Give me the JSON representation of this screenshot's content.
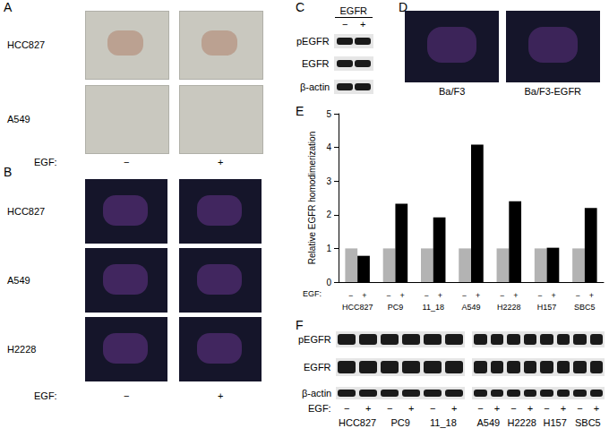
{
  "panels": {
    "A": {
      "label": "A",
      "rows": [
        "HCC827",
        "A549"
      ],
      "condition": "EGF:",
      "columns": [
        "−",
        "+"
      ]
    },
    "B": {
      "label": "B",
      "rows": [
        "HCC827",
        "A549",
        "H2228"
      ],
      "condition": "EGF:",
      "columns": [
        "−",
        "+"
      ]
    },
    "C": {
      "label": "C",
      "header": "EGFR",
      "columns": [
        "−",
        "+"
      ],
      "rows": [
        "pEGFR",
        "EGFR",
        "β-actin"
      ]
    },
    "D": {
      "label": "D",
      "images": [
        "Ba/F3",
        "Ba/F3-EGFR"
      ]
    },
    "F": {
      "label": "F",
      "rows": [
        "pEGFR",
        "EGFR",
        "β-actin"
      ],
      "condition": "EGF:",
      "columns": [
        "−",
        "+"
      ],
      "groups": [
        [
          "HCC827",
          "PC9",
          "11_18"
        ],
        [
          "A549",
          "H2228",
          "H157",
          "SBC5"
        ]
      ]
    }
  },
  "chart_data": {
    "type": "bar",
    "panel": "E",
    "y_label": "Relative EGFR homodimerization",
    "x_label": "EGF:",
    "categories": [
      "HCC827",
      "PC9",
      "11_18",
      "A549",
      "H2228",
      "H157",
      "SBC5"
    ],
    "series": [
      {
        "name": "−",
        "color": "#b3b3b3",
        "values": [
          1,
          1,
          1,
          1,
          1,
          1,
          1
        ]
      },
      {
        "name": "+",
        "color": "#000000",
        "values": [
          0.78,
          2.33,
          1.92,
          4.08,
          2.4,
          1.02,
          2.2
        ]
      }
    ],
    "ylim": [
      0,
      5
    ],
    "yticks": [
      0,
      1,
      2,
      3,
      4,
      5
    ]
  }
}
